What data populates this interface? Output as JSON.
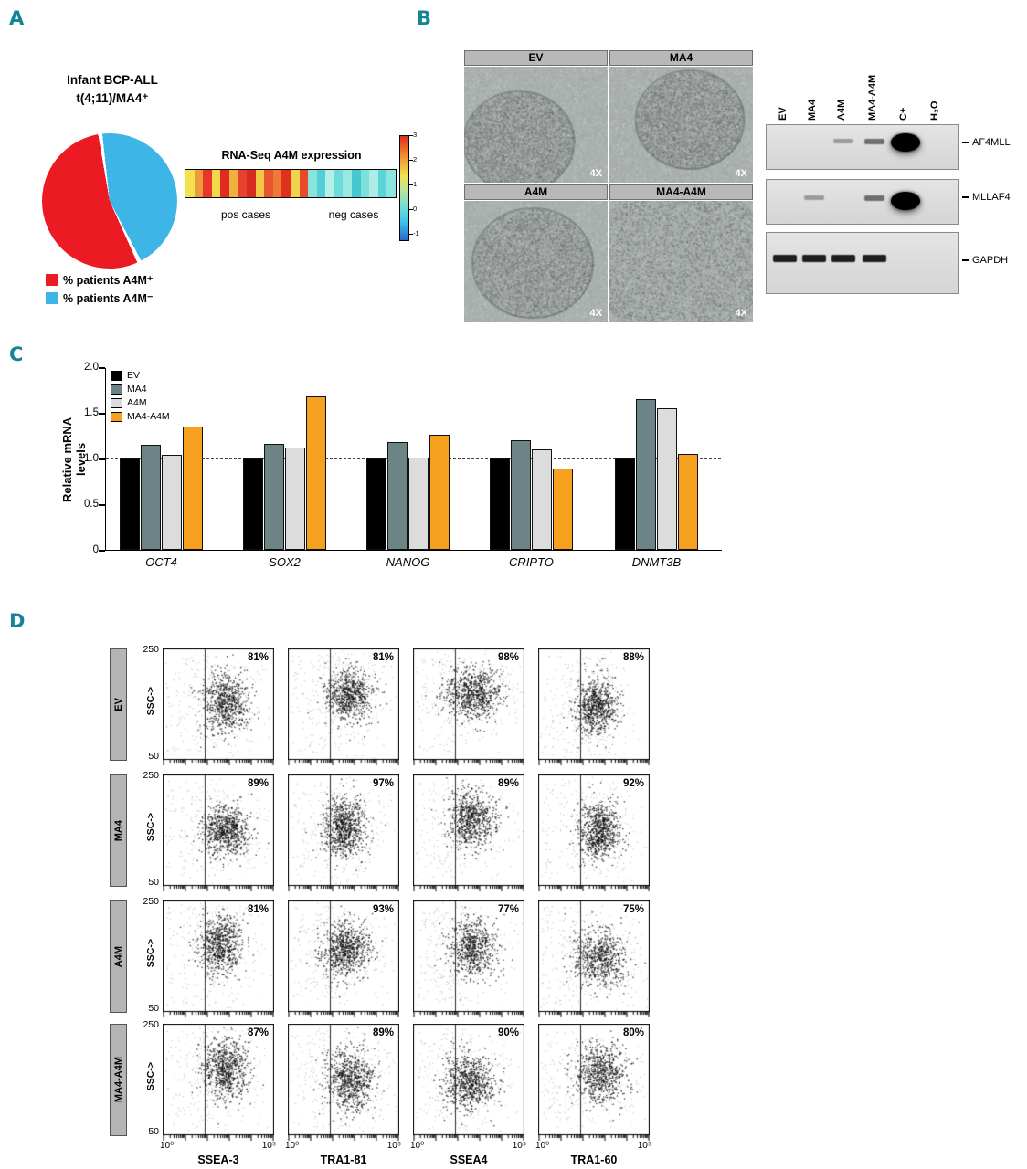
{
  "panel_labels": {
    "a": "A",
    "b": "B",
    "c": "C",
    "d": "D"
  },
  "panel_a": {
    "title_line1": "Infant BCP-ALL",
    "title_line2": "t(4;11)/MA4⁺",
    "legend": [
      {
        "label": "% patients A4M⁺",
        "color": "#ec1b23"
      },
      {
        "label": "% patients A4M⁻",
        "color": "#3db5e6"
      }
    ],
    "heatmap_title": "RNA-Seq A4M expression",
    "pos_label": "pos cases",
    "neg_label": "neg cases",
    "colorbar_ticks": [
      "3",
      "2",
      "1",
      "0",
      "-1"
    ]
  },
  "panel_b": {
    "microscopy": [
      {
        "title": "EV",
        "mag": "4X"
      },
      {
        "title": "MA4",
        "mag": "4X"
      },
      {
        "title": "A4M",
        "mag": "4X"
      },
      {
        "title": "MA4-A4M",
        "mag": "4X"
      }
    ],
    "gel_lanes": [
      "EV",
      "MA4",
      "A4M",
      "MA4-A4M",
      "C+",
      "H₂O"
    ],
    "gels": [
      {
        "label": "AF4MLL",
        "bands": [
          {
            "lane": "A4M",
            "intensity": "weak"
          },
          {
            "lane": "MA4-A4M",
            "intensity": "medium"
          },
          {
            "lane": "C+",
            "intensity": "strong"
          }
        ]
      },
      {
        "label": "MLLAF4",
        "bands": [
          {
            "lane": "MA4",
            "intensity": "weak"
          },
          {
            "lane": "MA4-A4M",
            "intensity": "medium"
          },
          {
            "lane": "C+",
            "intensity": "strong"
          }
        ]
      },
      {
        "label": "GAPDH",
        "bands": [
          {
            "lane": "EV",
            "intensity": "strong"
          },
          {
            "lane": "MA4",
            "intensity": "strong"
          },
          {
            "lane": "A4M",
            "intensity": "strong"
          },
          {
            "lane": "MA4-A4M",
            "intensity": "strong"
          }
        ]
      }
    ]
  },
  "panel_c": {
    "ylabel": "Relative mRNA levels",
    "yticks": [
      "2.0",
      "1.5",
      "1.0",
      "0.5",
      "0"
    ]
  },
  "panel_d": {
    "ylabel": "SSC->",
    "y_top": "250",
    "y_bottom": "50"
  },
  "chart_data": [
    {
      "type": "pie",
      "title": "Infant BCP-ALL t(4;11)/MA4⁺",
      "labels": [
        "% patients A4M⁺",
        "% patients A4M⁻"
      ],
      "values": [
        55,
        45
      ],
      "colors": [
        "#ec1b23",
        "#3db5e6"
      ],
      "start_angle_deg": -8
    },
    {
      "type": "heatmap",
      "title": "RNA-Seq A4M expression",
      "groups": [
        {
          "label": "pos cases",
          "n_cases": 14
        },
        {
          "label": "neg cases",
          "n_cases": 10
        }
      ],
      "cell_colors": [
        "#f2e24e",
        "#ef9a3a",
        "#e8372a",
        "#f2d84a",
        "#e02c20",
        "#f0b23e",
        "#e8412e",
        "#d92a20",
        "#f2c946",
        "#e85630",
        "#ef7a36",
        "#e0301f",
        "#f2d44c",
        "#e84b2c",
        "#8ae4de",
        "#52cfd6",
        "#b6efe8",
        "#6cdcda",
        "#99e9e2",
        "#45c8d2",
        "#7ee0db",
        "#aeece6",
        "#5ad4d8",
        "#8ce5df"
      ],
      "colorbar": {
        "min": -1,
        "max": 3,
        "ticks": [
          3,
          2,
          1,
          0,
          -1
        ]
      }
    },
    {
      "type": "bar",
      "categories": [
        "OCT4",
        "SOX2",
        "NANOG",
        "CRIPTO",
        "DNMT3B"
      ],
      "series": [
        {
          "name": "EV",
          "color": "#000000",
          "values": [
            1.0,
            1.0,
            1.0,
            1.0,
            1.0
          ]
        },
        {
          "name": "MA4",
          "color": "#6d8486",
          "values": [
            1.15,
            1.16,
            1.18,
            1.2,
            1.65
          ]
        },
        {
          "name": "A4M",
          "color": "#dcdcdc",
          "values": [
            1.04,
            1.12,
            1.01,
            1.1,
            1.55
          ]
        },
        {
          "name": "MA4-A4M",
          "color": "#f5a01e",
          "values": [
            1.35,
            1.68,
            1.26,
            0.89,
            1.05
          ]
        }
      ],
      "ylabel": "Relative mRNA levels",
      "ylim": [
        0,
        2.0
      ],
      "reference_line": 1.0,
      "legend_position": "upper-left"
    },
    {
      "type": "scatter",
      "subtype": "flow-cytometry",
      "rows": [
        "EV",
        "MA4",
        "A4M",
        "MA4-A4M"
      ],
      "cols": [
        "SSEA-3",
        "TRA1-81",
        "SSEA4",
        "TRA1-60"
      ],
      "percent_positive": [
        [
          81,
          81,
          98,
          88
        ],
        [
          89,
          97,
          89,
          92
        ],
        [
          81,
          93,
          77,
          75
        ],
        [
          87,
          89,
          90,
          80
        ]
      ],
      "ylabel": "SSC->",
      "ylim": [
        50,
        250
      ],
      "x_scale": "log",
      "x_tick_labels": [
        "10⁰",
        "10⁵"
      ]
    }
  ]
}
